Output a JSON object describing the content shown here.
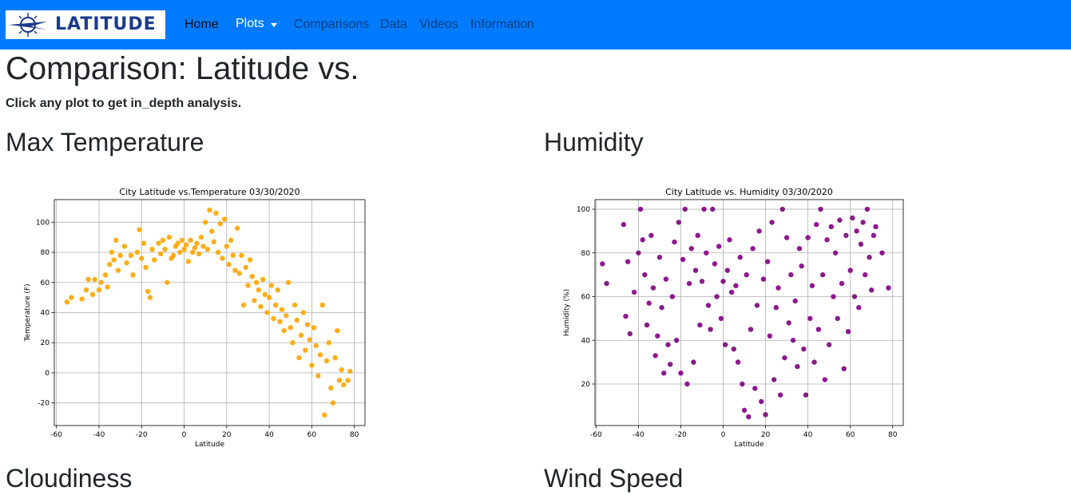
{
  "navbar": {
    "brand": "LATITUDE",
    "links": [
      "Home",
      "Plots",
      "Comparisons",
      "Data",
      "Videos",
      "Information"
    ]
  },
  "heading": "Comparison: Latitude vs.",
  "instruction": "Click any plot to get in_depth analysis.",
  "sections": [
    "Max Temperature",
    "Humidity",
    "Cloudiness",
    "Wind Speed"
  ],
  "chart_data": [
    {
      "type": "scatter",
      "title": "City Latitude vs.Temperature 03/30/2020",
      "x_label": "Latitude",
      "y_label": "Temperature (F)",
      "color": "#ffa500",
      "grid": true,
      "xlim": [
        -61,
        85
      ],
      "ylim": [
        -35,
        115
      ],
      "xticks": [
        -60,
        -40,
        -20,
        0,
        20,
        40,
        60,
        80
      ],
      "yticks": [
        -20,
        0,
        20,
        40,
        60,
        80,
        100
      ],
      "x": [
        -55,
        -53,
        -48,
        -46,
        -45,
        -43,
        -42,
        -40,
        -39,
        -37,
        -36,
        -35,
        -34,
        -33,
        -32,
        -31,
        -30,
        -28,
        -27,
        -25,
        -24,
        -22,
        -21,
        -20,
        -19,
        -18,
        -17,
        -16,
        -15,
        -14,
        -12,
        -11,
        -10,
        -9,
        -8,
        -7,
        -6,
        -5,
        -4,
        -3,
        -2,
        -1,
        0,
        1,
        2,
        3,
        4,
        5,
        6,
        7,
        8,
        9,
        10,
        11,
        12,
        13,
        14,
        15,
        16,
        17,
        18,
        19,
        20,
        21,
        22,
        23,
        24,
        25,
        26,
        27,
        28,
        29,
        30,
        31,
        32,
        33,
        34,
        35,
        36,
        37,
        38,
        39,
        40,
        41,
        42,
        43,
        44,
        45,
        46,
        47,
        48,
        49,
        50,
        51,
        52,
        53,
        54,
        55,
        56,
        57,
        58,
        59,
        60,
        61,
        62,
        63,
        64,
        65,
        66,
        67,
        68,
        69,
        70,
        71,
        72,
        73,
        74,
        75,
        77,
        78
      ],
      "y": [
        47,
        50,
        49,
        55,
        62,
        52,
        62,
        55,
        60,
        65,
        57,
        72,
        80,
        75,
        88,
        68,
        78,
        84,
        73,
        78,
        65,
        80,
        95,
        76,
        86,
        70,
        54,
        50,
        82,
        75,
        86,
        79,
        88,
        82,
        60,
        90,
        76,
        78,
        84,
        86,
        80,
        88,
        82,
        85,
        74,
        88,
        80,
        83,
        86,
        79,
        90,
        84,
        100,
        82,
        108,
        94,
        87,
        106,
        80,
        99,
        76,
        102,
        84,
        72,
        88,
        78,
        68,
        96,
        66,
        78,
        45,
        70,
        58,
        75,
        64,
        48,
        60,
        55,
        44,
        62,
        52,
        40,
        50,
        58,
        36,
        45,
        55,
        34,
        42,
        28,
        38,
        60,
        30,
        20,
        45,
        35,
        10,
        25,
        40,
        15,
        32,
        22,
        5,
        30,
        18,
        -2,
        12,
        45,
        -28,
        8,
        20,
        -10,
        -20,
        10,
        28,
        -5,
        2,
        -8,
        -5,
        1
      ]
    },
    {
      "type": "scatter",
      "title": "City Latitude vs. Humidity 03/30/2020",
      "x_label": "Latitude",
      "y_label": "Humidity (%)",
      "color": "#800080",
      "grid": true,
      "xlim": [
        -60.5,
        85
      ],
      "ylim": [
        1,
        104.4
      ],
      "xticks": [
        -60,
        -40,
        -20,
        0,
        20,
        40,
        60,
        80
      ],
      "yticks": [
        20,
        40,
        60,
        80,
        100
      ],
      "x": [
        -57,
        -55,
        -47,
        -46,
        -45,
        -44,
        -42,
        -40,
        -39,
        -38,
        -37,
        -36,
        -35,
        -34,
        -33,
        -32,
        -31,
        -30,
        -29,
        -28,
        -27,
        -26,
        -25,
        -24,
        -23,
        -22,
        -21,
        -20,
        -19,
        -18,
        -17,
        -16,
        -15,
        -14,
        -13,
        -12,
        -11,
        -10,
        -9,
        -8,
        -7,
        -6,
        -5,
        -4,
        -3,
        -2,
        -1,
        0,
        1,
        2,
        3,
        4,
        5,
        6,
        7,
        8,
        9,
        10,
        11,
        12,
        13,
        14,
        15,
        16,
        17,
        18,
        19,
        20,
        21,
        22,
        23,
        24,
        25,
        26,
        27,
        28,
        29,
        30,
        31,
        32,
        33,
        34,
        35,
        36,
        37,
        38,
        39,
        40,
        41,
        42,
        43,
        44,
        45,
        46,
        47,
        48,
        49,
        50,
        51,
        52,
        53,
        54,
        55,
        56,
        57,
        58,
        59,
        60,
        61,
        62,
        63,
        64,
        65,
        66,
        67,
        68,
        69,
        70,
        71,
        72,
        75,
        78
      ],
      "y": [
        75,
        66,
        93,
        51,
        76,
        43,
        62,
        80,
        100,
        86,
        70,
        47,
        57,
        88,
        64,
        33,
        42,
        78,
        55,
        25,
        68,
        38,
        29,
        60,
        85,
        40,
        94,
        25,
        77,
        100,
        20,
        66,
        82,
        30,
        72,
        88,
        47,
        67,
        100,
        80,
        56,
        45,
        100,
        75,
        60,
        83,
        50,
        67,
        38,
        72,
        86,
        62,
        36,
        65,
        30,
        78,
        20,
        8,
        70,
        5,
        45,
        82,
        18,
        56,
        90,
        12,
        68,
        6,
        76,
        42,
        94,
        22,
        55,
        64,
        15,
        100,
        32,
        87,
        48,
        70,
        40,
        58,
        28,
        82,
        74,
        36,
        15,
        87,
        50,
        65,
        30,
        93,
        45,
        100,
        70,
        22,
        86,
        38,
        92,
        60,
        80,
        50,
        95,
        66,
        27,
        88,
        44,
        72,
        96,
        60,
        90,
        55,
        84,
        94,
        70,
        100,
        78,
        63,
        88,
        92,
        80,
        64
      ]
    }
  ]
}
